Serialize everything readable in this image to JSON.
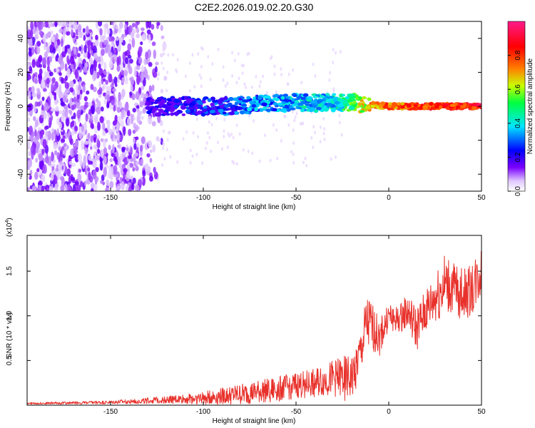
{
  "chart_data": [
    {
      "type": "heatmap",
      "title": "C2E2.2026.019.02.20.G30",
      "xlabel": "Height of straight line (km)",
      "ylabel": "Frequency (Hz)",
      "xlim": [
        -195,
        50
      ],
      "ylim": [
        -50,
        50
      ],
      "xticks": [
        -150,
        -100,
        -50,
        0,
        50
      ],
      "yticks": [
        -40,
        -20,
        0,
        20,
        40
      ],
      "colorbar": {
        "label": "Normalized spectral amplitude",
        "range": [
          0,
          1
        ],
        "ticks": [
          "0.0",
          "0.2",
          "0.4",
          "0.6",
          "0.8"
        ],
        "colors": [
          "#ffffff",
          "#6a00ff",
          "#0000ff",
          "#00e5ff",
          "#00ff40",
          "#c8ff00",
          "#ff8000",
          "#ff0000",
          "#ff1a8c"
        ]
      },
      "description_series": [
        {
          "name": "scatter noise region",
          "x_range": [
            -195,
            -125
          ],
          "freq_range": [
            -50,
            50
          ],
          "amplitude": 0.1
        },
        {
          "name": "band centre",
          "x": [
            -130,
            -110,
            -90,
            -70,
            -50,
            -30,
            -20,
            -10,
            0,
            20,
            50
          ],
          "freq": [
            0,
            0,
            0,
            1,
            2,
            2,
            2,
            1,
            0,
            0,
            0
          ],
          "amplitude": [
            0.25,
            0.3,
            0.35,
            0.4,
            0.45,
            0.5,
            0.6,
            0.8,
            0.85,
            0.9,
            0.95
          ]
        }
      ]
    },
    {
      "type": "line",
      "title": "",
      "xlabel": "Height of straight line (km)",
      "ylabel": "SNR (10 * v/v)",
      "yscale_label": "(x10",
      "yscale_exp": "4",
      "yscale_close": ")",
      "xlim": [
        -195,
        50
      ],
      "ylim": [
        0,
        1.9
      ],
      "xticks": [
        -150,
        -100,
        -50,
        0,
        50
      ],
      "yticks": [
        "0.5",
        "1.0",
        "1.5"
      ],
      "color": "#e8302a",
      "envelope": {
        "x": [
          -195,
          -150,
          -120,
          -100,
          -80,
          -60,
          -50,
          -40,
          -30,
          -25,
          -20,
          -15,
          -12,
          -10,
          -5,
          0,
          5,
          10,
          15,
          20,
          25,
          30,
          35,
          40,
          45,
          50
        ],
        "mean": [
          0.02,
          0.03,
          0.06,
          0.08,
          0.12,
          0.18,
          0.22,
          0.25,
          0.3,
          0.3,
          0.3,
          0.6,
          0.9,
          0.9,
          0.75,
          1.0,
          0.95,
          1.05,
          0.85,
          1.05,
          1.2,
          1.35,
          1.3,
          1.25,
          1.3,
          1.5
        ],
        "spread": [
          0.01,
          0.02,
          0.04,
          0.07,
          0.12,
          0.14,
          0.15,
          0.16,
          0.2,
          0.25,
          0.25,
          0.25,
          0.35,
          0.3,
          0.2,
          0.15,
          0.15,
          0.2,
          0.25,
          0.25,
          0.3,
          0.35,
          0.3,
          0.3,
          0.3,
          0.3
        ]
      }
    }
  ]
}
